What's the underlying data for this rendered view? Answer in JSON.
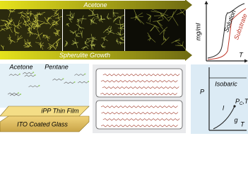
{
  "top_banner": {
    "solvent": "Acetone",
    "growth": "Spherulite Growth"
  },
  "solubility_plot": {
    "y_label": "mg/ml",
    "x_label": "T",
    "solution": "Solution",
    "substrate": "Substrate"
  },
  "film_stack": {
    "solvent_1": "Acetone",
    "solvent_2": "Pentane",
    "film": "iPP Thin Film",
    "substrate": "ITO Coated Glass"
  },
  "phase_diagram": {
    "y_label": "P",
    "x_label": "T",
    "isobaric": "Isobaric",
    "liquid": "l",
    "gas": "g",
    "critical_point": {
      "p": "P",
      "p_sub": "C",
      "sep": ",",
      "t": "T",
      "t_sub": "C"
    }
  }
}
